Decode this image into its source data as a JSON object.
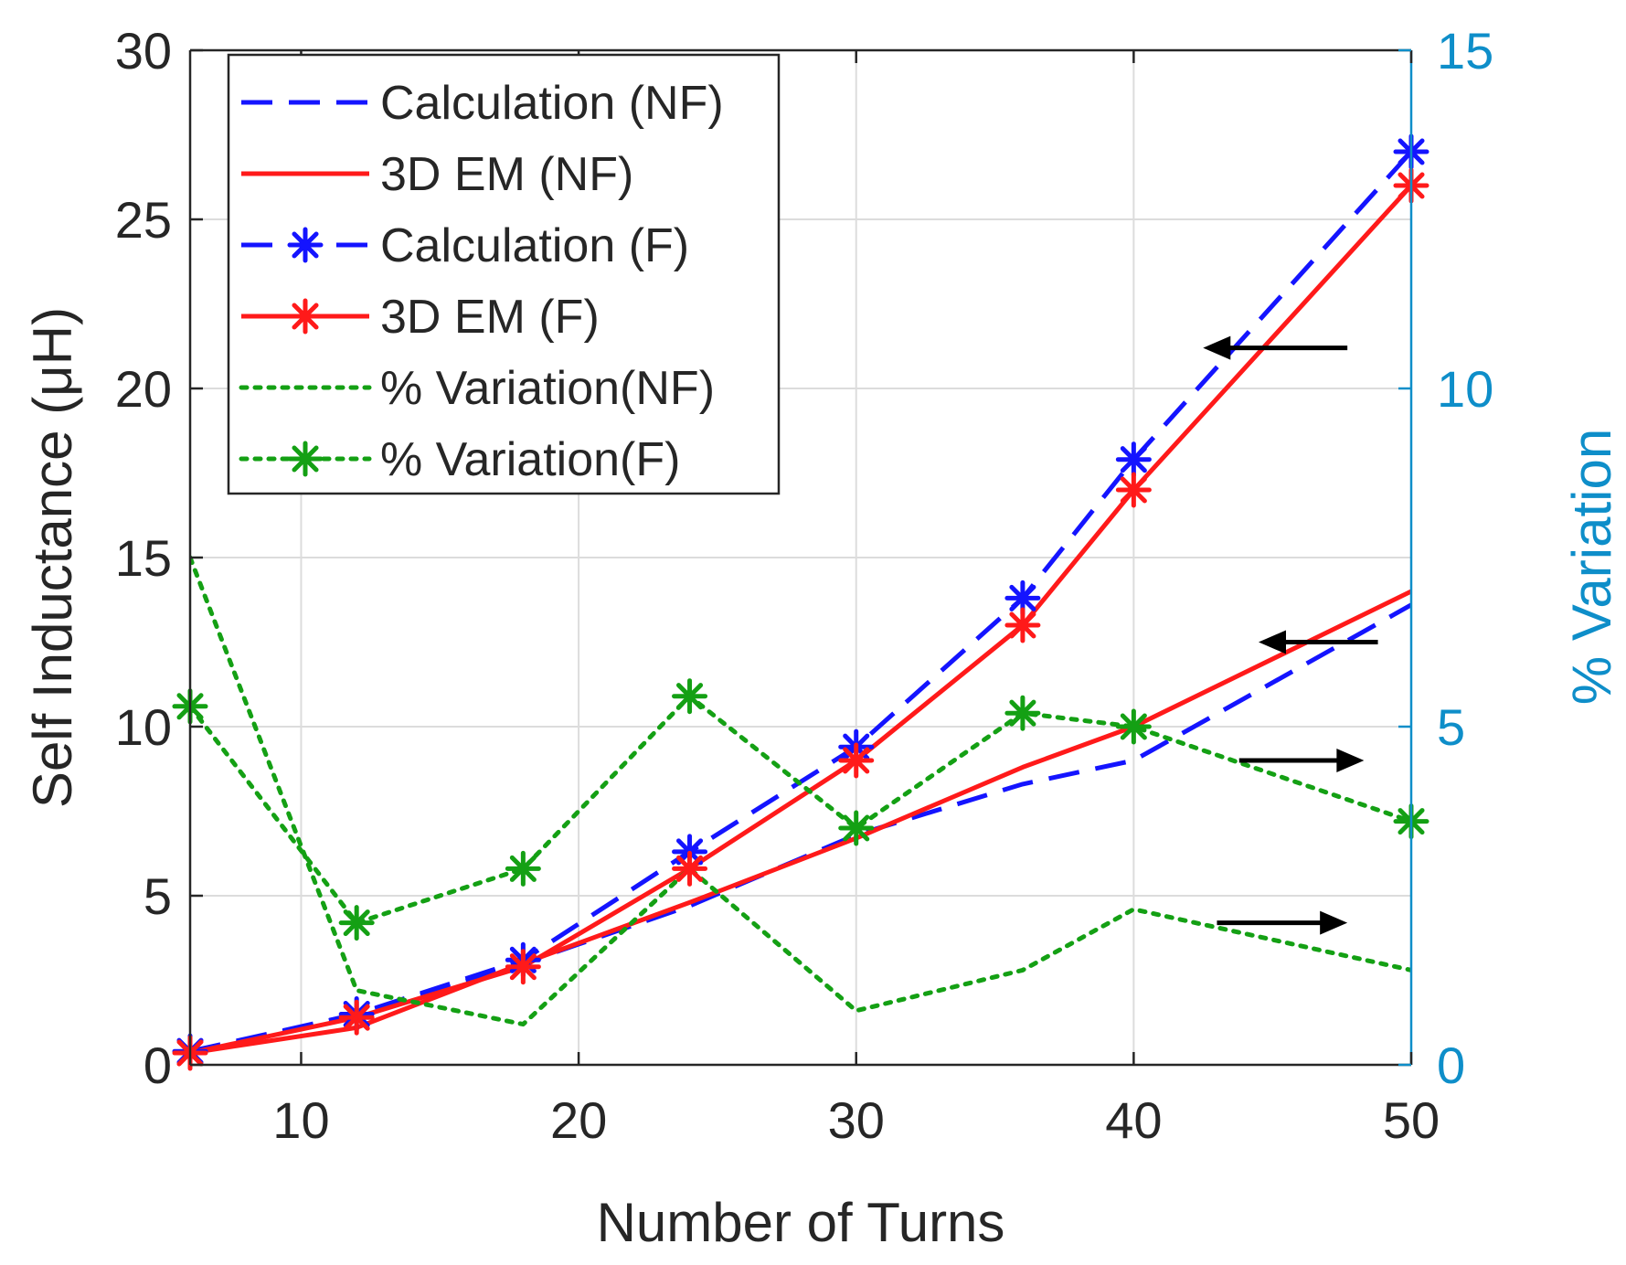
{
  "chart_data": {
    "type": "line",
    "xlabel": "Number of Turns",
    "ylabel": "Self Inductance (μH)",
    "ylabel_right": "% Variation",
    "xlim": [
      6,
      50
    ],
    "ylim": [
      0,
      30
    ],
    "ylim_right": [
      0,
      15
    ],
    "xticks": [
      10,
      20,
      30,
      40,
      50
    ],
    "yticks": [
      0,
      5,
      10,
      15,
      20,
      25,
      30
    ],
    "yticks_right": [
      0,
      5,
      10,
      15
    ],
    "grid": true,
    "legend_position": "top-left",
    "colors": {
      "blue": "#1414ff",
      "red": "#ff1a1a",
      "green": "#14a014",
      "right_axis": "#0e8ec9",
      "arrow": "#000000"
    },
    "series": [
      {
        "name": "Calculation (NF)",
        "axis": "left",
        "color": "#1414ff",
        "style": "dashed",
        "marker": "none",
        "x": [
          6,
          12,
          18,
          24,
          30,
          36,
          40,
          50
        ],
        "y": [
          0.35,
          1.5,
          3.0,
          4.7,
          6.8,
          8.3,
          9.0,
          13.6
        ]
      },
      {
        "name": "3D EM (NF)",
        "axis": "left",
        "color": "#ff1a1a",
        "style": "solid",
        "marker": "none",
        "x": [
          6,
          12,
          18,
          24,
          30,
          36,
          40,
          50
        ],
        "y": [
          0.35,
          1.1,
          3.0,
          4.8,
          6.7,
          8.8,
          10.0,
          14.0
        ]
      },
      {
        "name": "Calculation (F)",
        "axis": "left",
        "color": "#1414ff",
        "style": "dashed",
        "marker": "star",
        "x": [
          6,
          12,
          18,
          24,
          30,
          36,
          40,
          50
        ],
        "y": [
          0.4,
          1.5,
          3.1,
          6.3,
          9.4,
          13.8,
          17.9,
          27.0
        ]
      },
      {
        "name": "3D EM (F)",
        "axis": "left",
        "color": "#ff1a1a",
        "style": "solid",
        "marker": "star",
        "x": [
          6,
          12,
          18,
          24,
          30,
          36,
          40,
          50
        ],
        "y": [
          0.35,
          1.4,
          2.9,
          5.8,
          9.0,
          13.0,
          17.0,
          26.0
        ]
      },
      {
        "name": "% Variation(NF)",
        "axis": "right",
        "color": "#14a014",
        "style": "dotted",
        "marker": "none",
        "x": [
          6,
          12,
          18,
          24,
          30,
          36,
          40,
          50
        ],
        "y": [
          7.5,
          1.1,
          0.6,
          2.9,
          0.8,
          1.4,
          2.3,
          1.4
        ]
      },
      {
        "name": "% Variation(F)",
        "axis": "right",
        "color": "#14a014",
        "style": "dotted",
        "marker": "star",
        "x": [
          6,
          12,
          18,
          24,
          30,
          36,
          40,
          50
        ],
        "y": [
          5.3,
          2.1,
          2.9,
          5.45,
          3.5,
          5.2,
          5.0,
          3.6
        ]
      }
    ],
    "annotations": [
      {
        "type": "arrow",
        "direction": "left",
        "x_from": 47.7,
        "x_to": 42.5,
        "y": 21.2,
        "axis": "left"
      },
      {
        "type": "arrow",
        "direction": "left",
        "x_from": 48.8,
        "x_to": 44.5,
        "y": 12.5,
        "axis": "left"
      },
      {
        "type": "arrow",
        "direction": "right",
        "x_from": 43.8,
        "x_to": 48.3,
        "y": 4.5,
        "axis": "right"
      },
      {
        "type": "arrow",
        "direction": "right",
        "x_from": 43.0,
        "x_to": 47.7,
        "y": 2.1,
        "axis": "right"
      }
    ]
  }
}
